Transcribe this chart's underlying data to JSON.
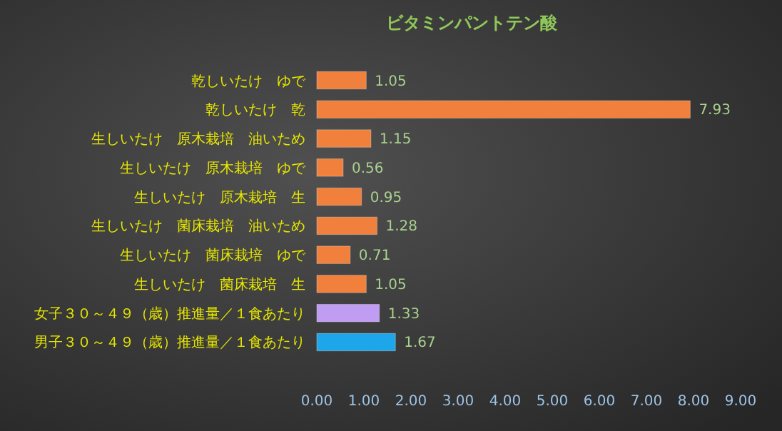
{
  "chart_data": {
    "type": "bar",
    "orientation": "horizontal",
    "title": "ビタミンパントテン酸",
    "categories": [
      "乾しいたけ　ゆで",
      "乾しいたけ　乾",
      "生しいたけ　原木栽培　油いため",
      "生しいたけ　原木栽培　ゆで",
      "生しいたけ　原木栽培　生",
      "生しいたけ　菌床栽培　油いため",
      "生しいたけ　菌床栽培　ゆで",
      "生しいたけ　菌床栽培　生",
      "女子３０～４９（歳）推進量／１食あたり",
      "男子３０～４９（歳）推進量／１食あたり"
    ],
    "values": [
      1.05,
      7.93,
      1.15,
      0.56,
      0.95,
      1.28,
      0.71,
      1.05,
      1.33,
      1.67
    ],
    "colors": [
      "#f0803c",
      "#f0803c",
      "#f0803c",
      "#f0803c",
      "#f0803c",
      "#f0803c",
      "#f0803c",
      "#f0803c",
      "#c09cf2",
      "#1ea6ea"
    ],
    "xlim": [
      0,
      9
    ],
    "xticks": [
      {
        "value": 0,
        "label": "0.00"
      },
      {
        "value": 1,
        "label": "1.00"
      },
      {
        "value": 2,
        "label": "2.00"
      },
      {
        "value": 3,
        "label": "3.00"
      },
      {
        "value": 4,
        "label": "4.00"
      },
      {
        "value": 5,
        "label": "5.00"
      },
      {
        "value": 6,
        "label": "6.00"
      },
      {
        "value": 7,
        "label": "7.00"
      },
      {
        "value": 8,
        "label": "8.00"
      },
      {
        "value": 9,
        "label": "9.00"
      }
    ],
    "data_labels": true,
    "grid": false
  }
}
